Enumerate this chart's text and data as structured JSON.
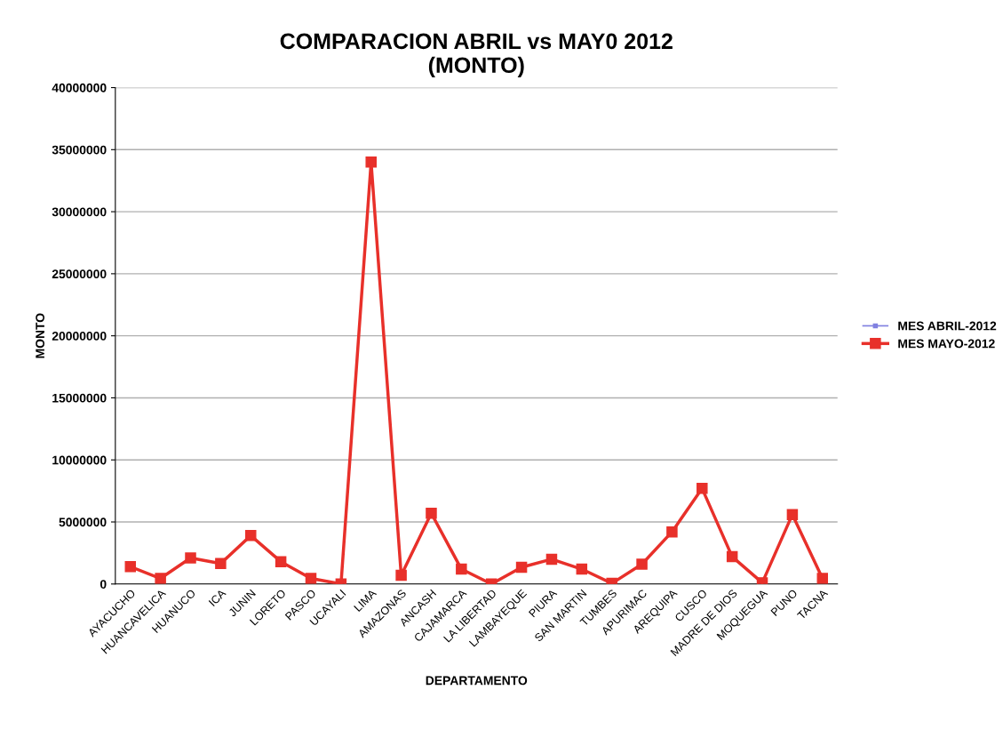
{
  "chart_data": {
    "type": "line",
    "title": "COMPARACION ABRIL vs MAY0 2012\n(MONTO)",
    "xlabel": "DEPARTAMENTO",
    "ylabel": "MONTO",
    "categories": [
      "AYACUCHO",
      "HUANCAVELICA",
      "HUANUCO",
      "ICA",
      "JUNIN",
      "LORETO",
      "PASCO",
      "UCAYALI",
      "LIMA",
      "AMAZONAS",
      "ANCASH",
      "CAJAMARCA",
      "LA LIBERTAD",
      "LAMBAYEQUE",
      "PIURA",
      "SAN MARTIN",
      "TUMBES",
      "APURIMAC",
      "AREQUIPA",
      "CUSCO",
      "MADRE DE DIOS",
      "MOQUEGUA",
      "PUNO",
      "TACNA"
    ],
    "series": [
      {
        "name": "MES ABRIL-2012",
        "color": "#8080e0",
        "values": [
          null,
          null,
          null,
          null,
          null,
          null,
          null,
          null,
          null,
          null,
          null,
          null,
          null,
          null,
          null,
          null,
          null,
          null,
          null,
          null,
          null,
          null,
          null,
          null
        ]
      },
      {
        "name": "MES MAYO-2012",
        "color": "#e8302a",
        "values": [
          1400000,
          450000,
          2100000,
          1650000,
          3900000,
          1800000,
          450000,
          0,
          34000000,
          700000,
          5700000,
          1200000,
          0,
          1350000,
          2000000,
          1200000,
          50000,
          1600000,
          4200000,
          7700000,
          2200000,
          100000,
          5600000,
          450000
        ]
      }
    ],
    "ylim": [
      0,
      40000000
    ],
    "yticks": [
      0,
      5000000,
      10000000,
      15000000,
      20000000,
      25000000,
      30000000,
      35000000,
      40000000
    ],
    "grid": "y",
    "legend": "right",
    "marker": "square",
    "line_style": "solid"
  }
}
